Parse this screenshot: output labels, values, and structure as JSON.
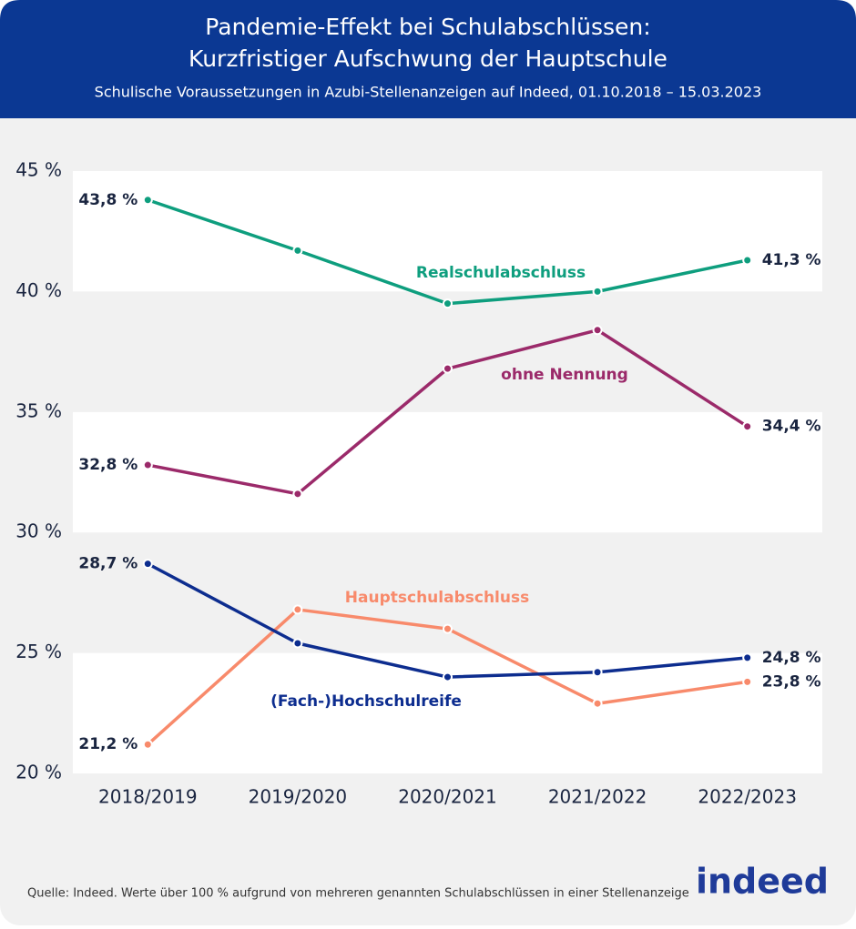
{
  "chart_data": {
    "type": "line",
    "title": [
      "Pandemie-Effekt bei Schulabschlüssen:",
      "Kurzfristiger Aufschwung der Hauptschule"
    ],
    "subtitle": "Schulische Voraussetzungen in Azubi-Stellenanzeigen auf Indeed, 01.10.2018 – 15.03.2023",
    "categories": [
      "2018/2019",
      "2019/2020",
      "2020/2021",
      "2021/2022",
      "2022/2023"
    ],
    "series": [
      {
        "name": "Realschulabschluss",
        "color": "#0e9e7e",
        "values": [
          43.8,
          41.7,
          39.5,
          40.0,
          41.3
        ],
        "value_labels": [
          "43,8 %",
          null,
          null,
          null,
          "41,3 %"
        ]
      },
      {
        "name": "ohne Nennung",
        "color": "#9b2a6a",
        "values": [
          32.8,
          31.6,
          36.8,
          38.4,
          34.4
        ],
        "value_labels": [
          "32,8 %",
          null,
          null,
          null,
          "34,4 %"
        ]
      },
      {
        "name": "Hauptschulabschluss",
        "color": "#f88a6b",
        "values": [
          21.2,
          26.8,
          26.0,
          22.9,
          23.8
        ],
        "value_labels": [
          "21,2 %",
          null,
          null,
          null,
          "23,8 %"
        ]
      },
      {
        "name": "(Fach-)Hochschulreife",
        "color": "#0d2d8f",
        "values": [
          28.7,
          25.4,
          24.0,
          24.2,
          24.8
        ],
        "value_labels": [
          "28,7 %",
          null,
          null,
          null,
          "24,8 %"
        ]
      }
    ],
    "ylim": [
      20,
      45
    ],
    "yticks": [
      {
        "value": 20,
        "label": "20 %"
      },
      {
        "value": 25,
        "label": "25 %"
      },
      {
        "value": 30,
        "label": "30 %"
      },
      {
        "value": 35,
        "label": "35 %"
      },
      {
        "value": 40,
        "label": "40 %"
      },
      {
        "value": 45,
        "label": "45 %"
      }
    ],
    "grid": "bands",
    "source": "Quelle: Indeed. Werte über 100 % aufgrund von mehreren genannten Schulabschlüssen in einer Stellenanzeige",
    "logo": "indeed"
  }
}
